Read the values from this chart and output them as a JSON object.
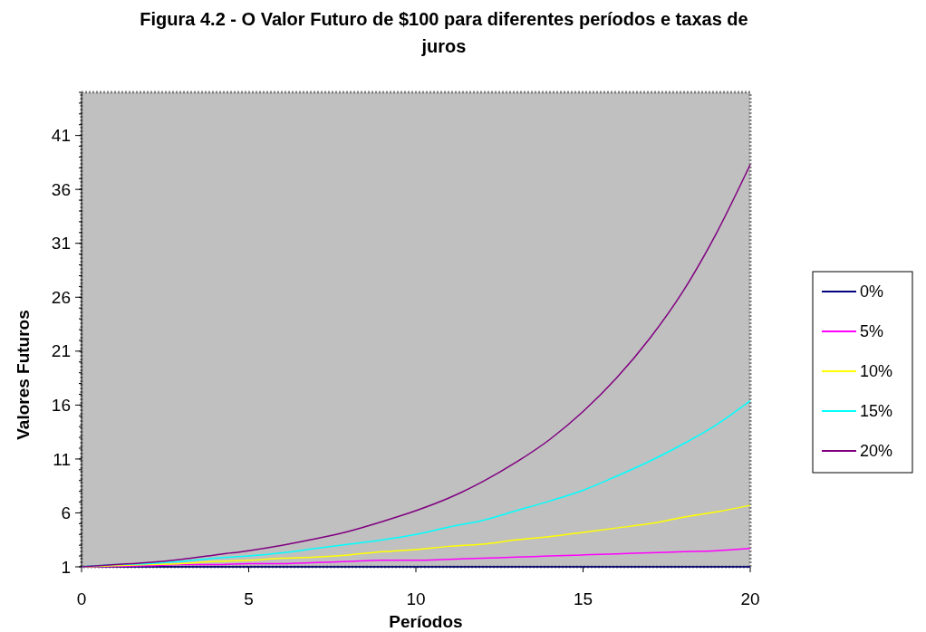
{
  "chart_data": {
    "type": "line",
    "title": "Figura 4.2 - O Valor Futuro de $100 para diferentes períodos e taxas de juros",
    "xlabel": "Períodos",
    "ylabel": "Valores Futuros",
    "x": [
      0,
      1,
      2,
      3,
      4,
      5,
      6,
      7,
      8,
      9,
      10,
      11,
      12,
      13,
      14,
      15,
      16,
      17,
      18,
      19,
      20
    ],
    "series": [
      {
        "name": "0%",
        "color": "#000080",
        "values": [
          1,
          1,
          1,
          1,
          1,
          1,
          1,
          1,
          1,
          1,
          1,
          1,
          1,
          1,
          1,
          1,
          1,
          1,
          1,
          1,
          1
        ]
      },
      {
        "name": "5%",
        "color": "#ff00ff",
        "values": [
          1,
          1.05,
          1.1,
          1.2,
          1.2,
          1.3,
          1.3,
          1.4,
          1.5,
          1.6,
          1.6,
          1.7,
          1.8,
          1.9,
          2,
          2.1,
          2.2,
          2.3,
          2.4,
          2.5,
          2.7
        ]
      },
      {
        "name": "10%",
        "color": "#ffff00",
        "values": [
          1,
          1.1,
          1.2,
          1.3,
          1.5,
          1.6,
          1.8,
          1.9,
          2.1,
          2.4,
          2.6,
          2.9,
          3.1,
          3.5,
          3.8,
          4.2,
          4.6,
          5,
          5.6,
          6.1,
          6.7
        ]
      },
      {
        "name": "15%",
        "color": "#00ffff",
        "values": [
          1,
          1.2,
          1.3,
          1.5,
          1.8,
          2,
          2.3,
          2.7,
          3.1,
          3.5,
          4,
          4.7,
          5.3,
          6.2,
          7.1,
          8.1,
          9.4,
          10.8,
          12.4,
          14.2,
          16.4
        ]
      },
      {
        "name": "20%",
        "color": "#800080",
        "values": [
          1,
          1.2,
          1.4,
          1.7,
          2.1,
          2.5,
          3,
          3.6,
          4.3,
          5.2,
          6.2,
          7.4,
          8.9,
          10.7,
          12.8,
          15.4,
          18.5,
          22.2,
          26.6,
          32,
          38.3
        ]
      }
    ],
    "xlim": [
      0,
      20
    ],
    "xticks": [
      0,
      5,
      10,
      15,
      20
    ],
    "ylim": [
      1,
      45
    ],
    "yticks": [
      1,
      6,
      11,
      16,
      21,
      26,
      31,
      36,
      41
    ],
    "legend": "right",
    "grid": false,
    "marker": "none",
    "line_style": "solid"
  }
}
